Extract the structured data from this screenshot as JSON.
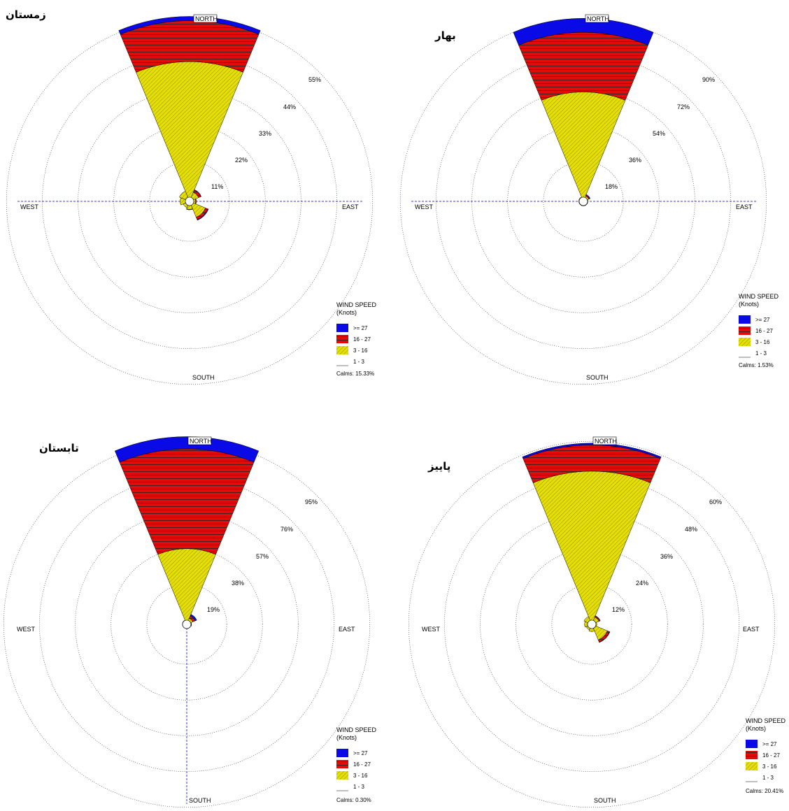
{
  "colors": {
    "ge27": "#0a0ae6",
    "r16_27": "#e30a0a",
    "r3_16": "#e6df06",
    "r1_3": "#ffffff",
    "axis": "#3a3ad0"
  },
  "direction_labels": {
    "north": "NORTH",
    "south": "SOUTH",
    "east": "EAST",
    "west": "WEST"
  },
  "legend": {
    "title_line1": "WIND SPEED",
    "title_line2": "(Knots)",
    "items": [
      ">= 27",
      "16 - 27",
      "3 - 16",
      "1 - 3"
    ]
  },
  "chart_data": [
    {
      "type": "wind-rose",
      "title": "زمستان",
      "rings": [
        "11%",
        "22%",
        "33%",
        "44%",
        "55%"
      ],
      "ring_values": [
        11,
        22,
        33,
        44,
        55
      ],
      "calms": "Calms: 15.33%",
      "sectors": [
        {
          "direction": "N",
          "r1_3": 0,
          "r3_16": 41.7,
          "r16_27": 12.6,
          "ge27": 1.3
        },
        {
          "direction": "NE",
          "r1_3": 0,
          "r3_16": 1.7,
          "r16_27": 0.8,
          "ge27": 0.1
        },
        {
          "direction": "E",
          "r1_3": 0,
          "r3_16": 0.6,
          "r16_27": 0.2,
          "ge27": 0.0
        },
        {
          "direction": "SE",
          "r1_3": 0,
          "r3_16": 4.0,
          "r16_27": 0.8,
          "ge27": 0.2
        },
        {
          "direction": "S",
          "r1_3": 0,
          "r3_16": 1.2,
          "r16_27": 0.1,
          "ge27": 0.0
        },
        {
          "direction": "SW",
          "r1_3": 0,
          "r3_16": 0.8,
          "r16_27": 0.0,
          "ge27": 0.0
        },
        {
          "direction": "W",
          "r1_3": 0,
          "r3_16": 1.6,
          "r16_27": 0.0,
          "ge27": 0.0
        },
        {
          "direction": "NW",
          "r1_3": 0,
          "r3_16": 2.1,
          "r16_27": 0.0,
          "ge27": 0.0
        }
      ]
    },
    {
      "type": "wind-rose",
      "title": "بهار",
      "rings": [
        "18%",
        "36%",
        "54%",
        "72%",
        "90%"
      ],
      "ring_values": [
        18,
        36,
        54,
        72,
        90
      ],
      "calms": "Calms: 1.53%",
      "sectors": [
        {
          "direction": "N",
          "r1_3": 0,
          "r3_16": 53.0,
          "r16_27": 30.0,
          "ge27": 7.0
        },
        {
          "direction": "NE",
          "r1_3": 0,
          "r3_16": 0.8,
          "r16_27": 0.5,
          "ge27": 0.3
        },
        {
          "direction": "E",
          "r1_3": 0,
          "r3_16": 0.2,
          "r16_27": 0.0,
          "ge27": 0.0
        },
        {
          "direction": "SE",
          "r1_3": 0,
          "r3_16": 0.2,
          "r16_27": 0.0,
          "ge27": 0.0
        },
        {
          "direction": "S",
          "r1_3": 0,
          "r3_16": 0.2,
          "r16_27": 0.0,
          "ge27": 0.0
        },
        {
          "direction": "SW",
          "r1_3": 0,
          "r3_16": 0.2,
          "r16_27": 0.0,
          "ge27": 0.0
        },
        {
          "direction": "W",
          "r1_3": 0,
          "r3_16": 0.2,
          "r16_27": 0.0,
          "ge27": 0.0
        },
        {
          "direction": "NW",
          "r1_3": 0,
          "r3_16": 0.3,
          "r16_27": 0.0,
          "ge27": 0.0
        }
      ]
    },
    {
      "type": "wind-rose",
      "title": "تابستان",
      "rings": [
        "19%",
        "38%",
        "57%",
        "76%",
        "95%"
      ],
      "ring_values": [
        19,
        38,
        57,
        76,
        95
      ],
      "calms": "Calms: 0.30%",
      "sectors": [
        {
          "direction": "N",
          "r1_3": 0,
          "r3_16": 38.0,
          "r16_27": 53.0,
          "ge27": 6.5
        },
        {
          "direction": "NE",
          "r1_3": 0,
          "r3_16": 1.2,
          "r16_27": 1.4,
          "ge27": 0.9
        },
        {
          "direction": "E",
          "r1_3": 0,
          "r3_16": 0.2,
          "r16_27": 0.1,
          "ge27": 0.0
        },
        {
          "direction": "SE",
          "r1_3": 0,
          "r3_16": 0.1,
          "r16_27": 0.0,
          "ge27": 0.0
        },
        {
          "direction": "S",
          "r1_3": 0,
          "r3_16": 0.1,
          "r16_27": 0.0,
          "ge27": 0.0
        },
        {
          "direction": "SW",
          "r1_3": 0,
          "r3_16": 0.1,
          "r16_27": 0.0,
          "ge27": 0.0
        },
        {
          "direction": "W",
          "r1_3": 0,
          "r3_16": 0.1,
          "r16_27": 0.0,
          "ge27": 0.0
        },
        {
          "direction": "NW",
          "r1_3": 0,
          "r3_16": 0.2,
          "r16_27": 0.0,
          "ge27": 0.0
        }
      ]
    },
    {
      "type": "wind-rose",
      "title": "پاییز",
      "rings": [
        "12%",
        "24%",
        "36%",
        "48%",
        "60%"
      ],
      "ring_values": [
        12,
        24,
        36,
        48,
        60
      ],
      "calms": "Calms: 20.41%",
      "sectors": [
        {
          "direction": "N",
          "r1_3": 0,
          "r3_16": 50.0,
          "r16_27": 8.8,
          "ge27": 0.6
        },
        {
          "direction": "NE",
          "r1_3": 0,
          "r3_16": 1.2,
          "r16_27": 0.4,
          "ge27": 0.1
        },
        {
          "direction": "E",
          "r1_3": 0,
          "r3_16": 0.3,
          "r16_27": 0.0,
          "ge27": 0.0
        },
        {
          "direction": "SE",
          "r1_3": 0,
          "r3_16": 4.3,
          "r16_27": 0.8,
          "ge27": 0.1
        },
        {
          "direction": "S",
          "r1_3": 0,
          "r3_16": 1.0,
          "r16_27": 0.0,
          "ge27": 0.0
        },
        {
          "direction": "SW",
          "r1_3": 0,
          "r3_16": 0.6,
          "r16_27": 0.0,
          "ge27": 0.0
        },
        {
          "direction": "W",
          "r1_3": 0,
          "r3_16": 1.0,
          "r16_27": 0.0,
          "ge27": 0.0
        },
        {
          "direction": "NW",
          "r1_3": 0,
          "r3_16": 1.4,
          "r16_27": 0.0,
          "ge27": 0.0
        }
      ]
    }
  ]
}
